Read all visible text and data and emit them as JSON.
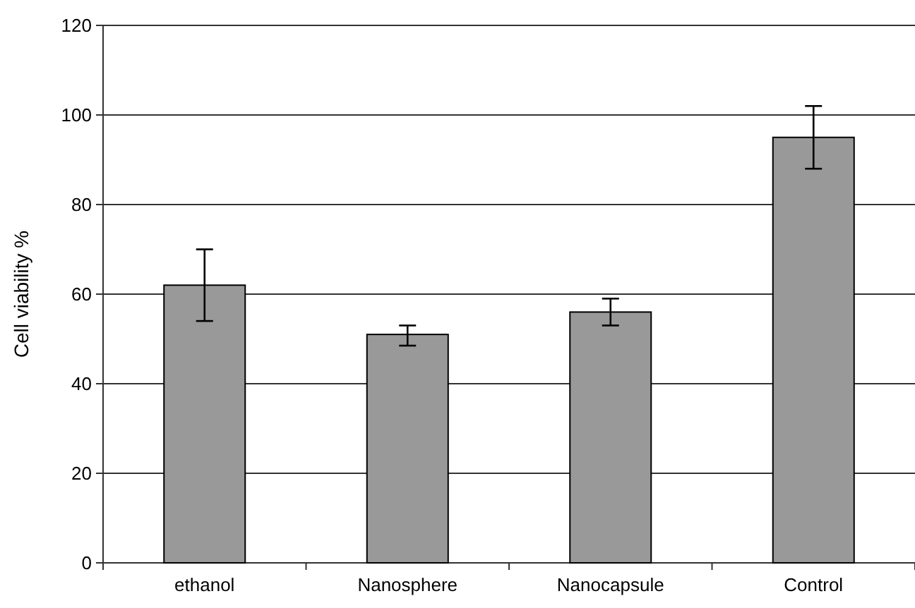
{
  "chart_data": {
    "type": "bar",
    "ylabel": "Cell viability %",
    "categories": [
      "ethanol",
      "Nanosphere",
      "Nanocapsule",
      "Control"
    ],
    "values": [
      62,
      51,
      56,
      95
    ],
    "color": "#999999",
    "errors": [
      [
        54,
        70
      ],
      [
        48.5,
        53
      ],
      [
        53,
        59
      ],
      [
        88,
        102
      ]
    ],
    "ylim": [
      0,
      120
    ],
    "yticks": [
      0,
      20,
      40,
      60,
      80,
      100,
      120
    ],
    "grid": "y"
  }
}
